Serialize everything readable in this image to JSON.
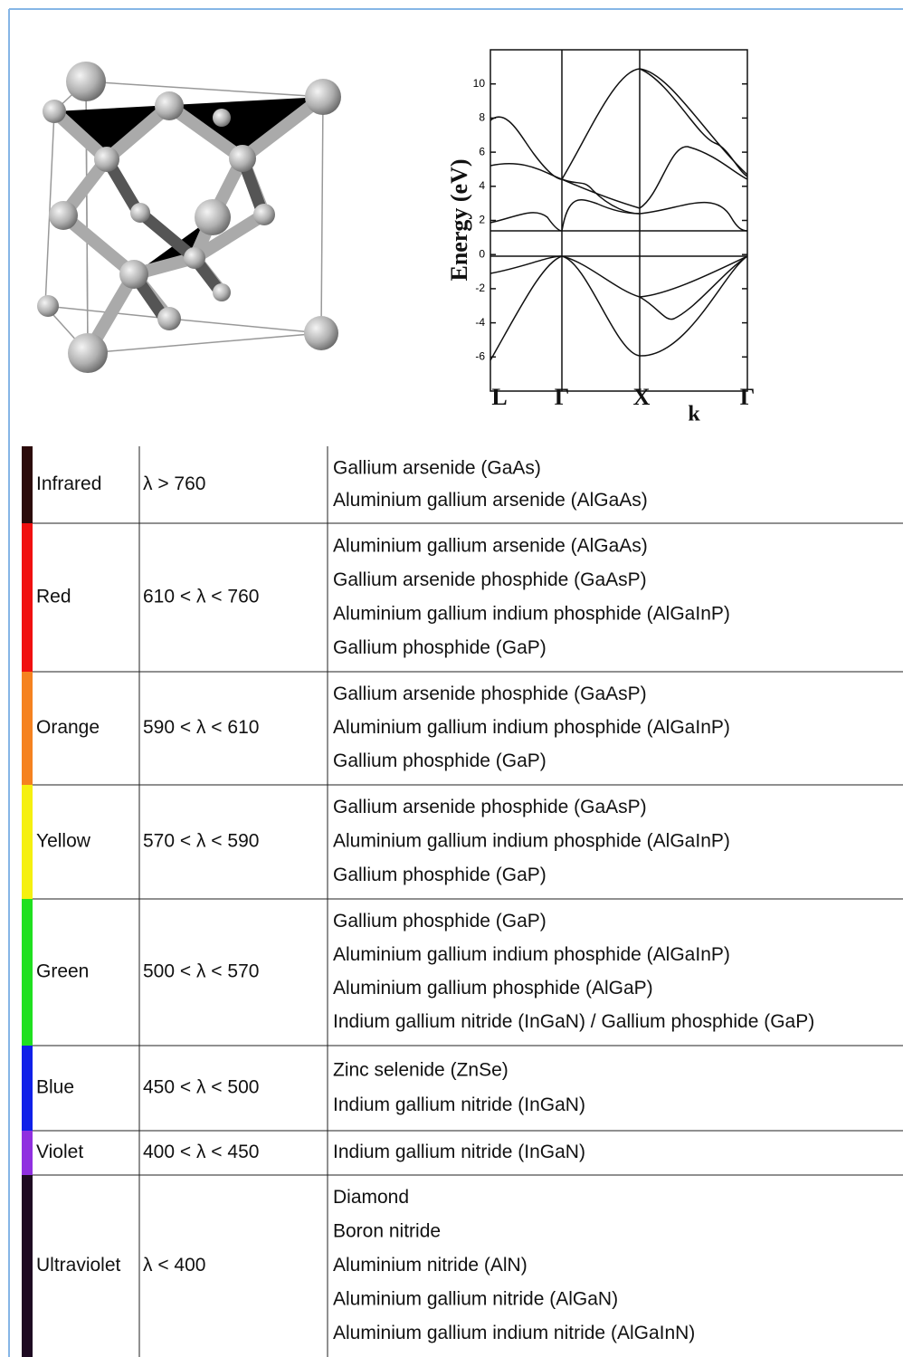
{
  "figure": {
    "y_label": "Energy (eV)",
    "ylim": [
      -8,
      12
    ],
    "yticks": [
      -6,
      -4,
      -2,
      0,
      2,
      4,
      6,
      8,
      10
    ],
    "k_points": [
      "L",
      "Γ",
      "X",
      "Γ"
    ],
    "k_label": "k"
  },
  "table": {
    "rows": [
      {
        "color": "#2b0b0b",
        "label": "Infrared",
        "range": "λ > 760",
        "materials": [
          "Gallium arsenide (GaAs)",
          "Aluminium gallium arsenide (AlGaAs)"
        ]
      },
      {
        "color": "#f01010",
        "label": "Red",
        "range": "610 < λ < 760",
        "materials": [
          "Aluminium gallium arsenide (AlGaAs)",
          "Gallium arsenide phosphide (GaAsP)",
          "Aluminium gallium indium phosphide (AlGaInP)",
          "Gallium phosphide (GaP)"
        ]
      },
      {
        "color": "#f58220",
        "label": "Orange",
        "range": "590 < λ < 610",
        "materials": [
          "Gallium arsenide phosphide (GaAsP)",
          "Aluminium gallium indium phosphide (AlGaInP)",
          "Gallium phosphide (GaP)"
        ]
      },
      {
        "color": "#f5f010",
        "label": "Yellow",
        "range": "570 < λ < 590",
        "materials": [
          "Gallium arsenide phosphide (GaAsP)",
          "Aluminium gallium indium phosphide (AlGaInP)",
          "Gallium phosphide (GaP)"
        ]
      },
      {
        "color": "#20e020",
        "label": "Green",
        "range": "500 < λ < 570",
        "materials": [
          "Gallium phosphide (GaP)",
          "Aluminium gallium indium phosphide (AlGaInP)",
          "Aluminium gallium phosphide (AlGaP)",
          "Indium gallium nitride (InGaN) / Gallium phosphide (GaP)"
        ]
      },
      {
        "color": "#1020e8",
        "label": "Blue",
        "range": "450 < λ < 500",
        "materials": [
          "Zinc selenide (ZnSe)",
          "Indium gallium nitride (InGaN)"
        ]
      },
      {
        "color": "#9030e0",
        "label": "Violet",
        "range": "400 < λ < 450",
        "materials": [
          "Indium gallium nitride (InGaN)"
        ]
      },
      {
        "color": "#1e0a22",
        "label": "Ultraviolet",
        "range": "λ < 400",
        "materials": [
          "Diamond",
          "Boron nitride",
          "Aluminium nitride (AlN)",
          "Aluminium gallium nitride (AlGaN)",
          "Aluminium gallium indium nitride (AlGaInN)"
        ]
      }
    ]
  }
}
